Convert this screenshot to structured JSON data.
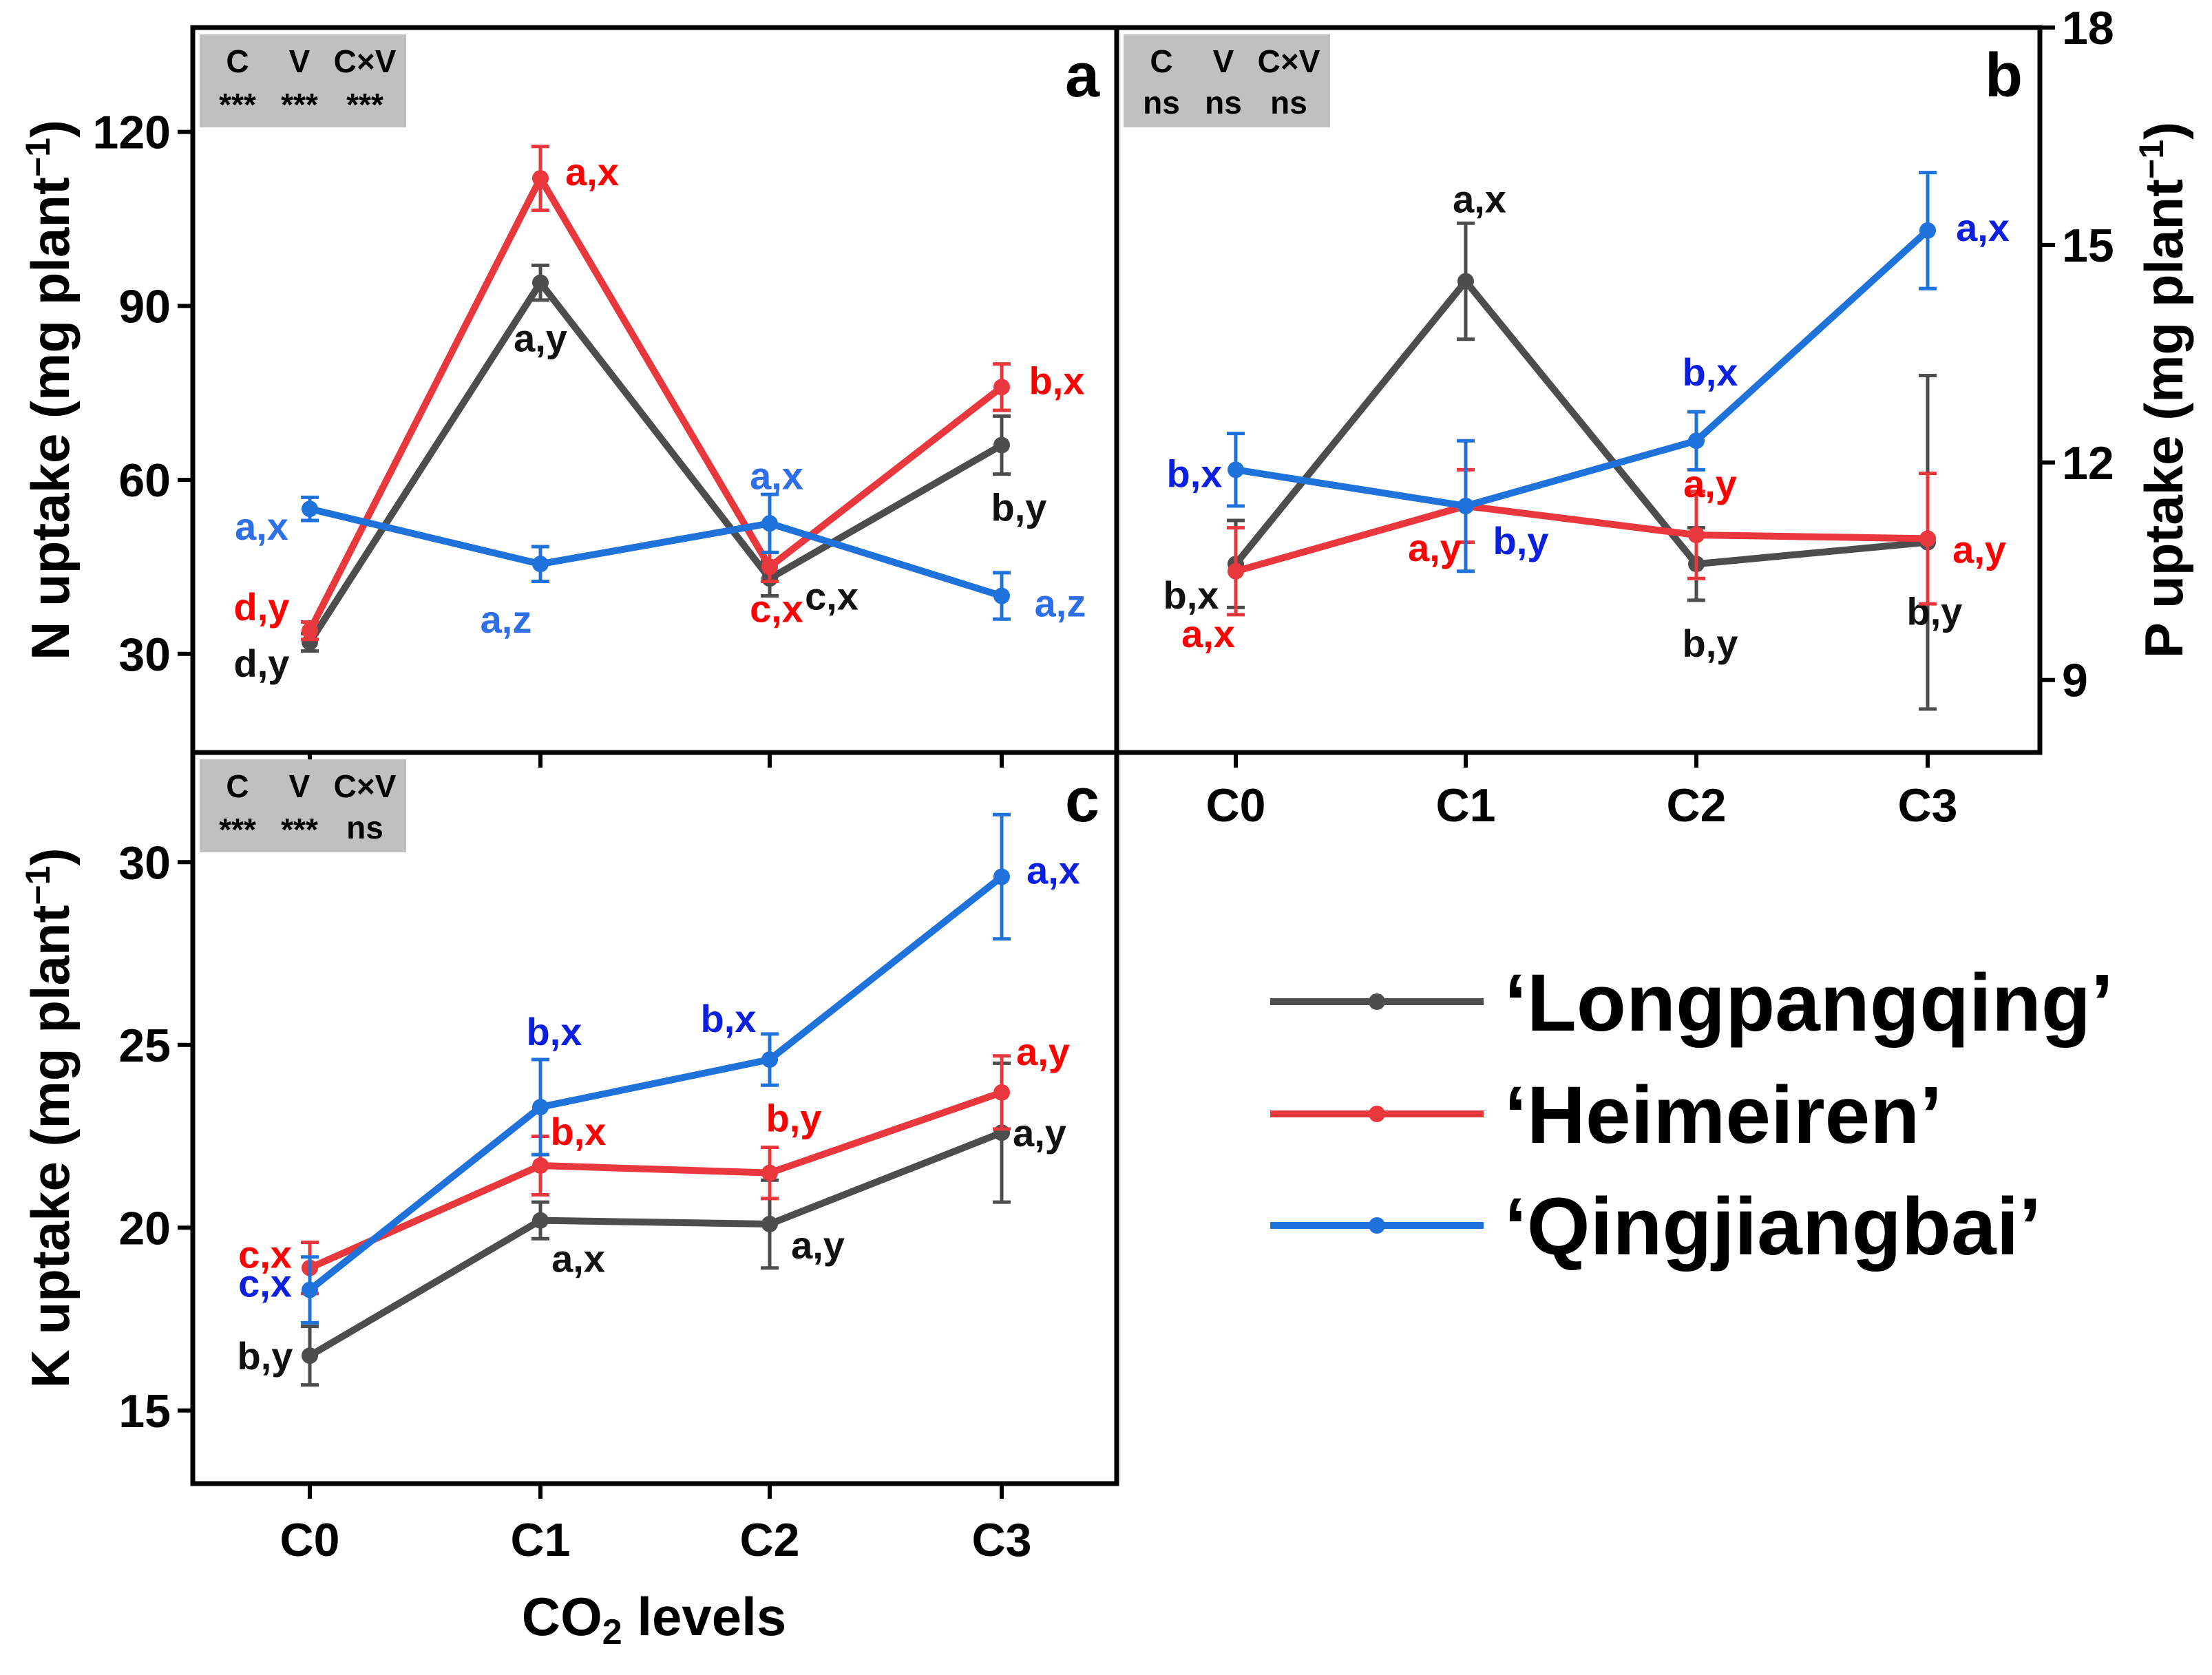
{
  "colors": {
    "Longpangqing": "#4d4d4d",
    "Heimeiren": "#e8383d",
    "Qingjiangbai": "#1f72d9",
    "label_black": "#111111",
    "label_red": "#ff0000",
    "label_blue_a": "#2e6fe8",
    "label_blue": "#0a1fe0",
    "anova_box": "#c0c0c0"
  },
  "legend": [
    {
      "name": "‘Longpangqing’",
      "series": "Longpangqing"
    },
    {
      "name": "‘Heimeiren’",
      "series": "Heimeiren"
    },
    {
      "name": "‘Qingjiangbai’",
      "series": "Qingjiangbai"
    }
  ],
  "xlabel_main": "CO",
  "xlabel_sub": "2",
  "xlabel_rest": " levels",
  "chart_data": [
    {
      "panel": "a",
      "type": "line",
      "categories": [
        "C0",
        "C1",
        "C2",
        "C3"
      ],
      "ylabel": "N uptake (mg plant",
      "ylabel_sup": "−1",
      "ylim": [
        13,
        138
      ],
      "yticks": [
        30,
        60,
        90,
        120
      ],
      "anova": {
        "headers": [
          "C",
          "V",
          "C×V"
        ],
        "values": [
          "***",
          "***",
          "***"
        ]
      },
      "series": [
        {
          "name": "Longpangqing",
          "values": [
            32,
            94,
            43,
            66
          ],
          "errors": [
            1.5,
            3,
            3,
            5
          ],
          "labels": [
            {
              "text": "d,y",
              "color": "black"
            },
            {
              "text": "a,y",
              "color": "black"
            },
            {
              "text": "c,x",
              "color": "black"
            },
            {
              "text": "b,y",
              "color": "black"
            }
          ]
        },
        {
          "name": "Heimeiren",
          "values": [
            34,
            112,
            45,
            76
          ],
          "errors": [
            1.5,
            5.5,
            2.5,
            4
          ],
          "labels": [
            {
              "text": "d,y",
              "color": "red"
            },
            {
              "text": "a,x",
              "color": "red"
            },
            {
              "text": "c,x",
              "color": "red"
            },
            {
              "text": "b,x",
              "color": "red"
            }
          ]
        },
        {
          "name": "Qingjiangbai",
          "values": [
            55,
            45.5,
            52.5,
            40
          ],
          "errors": [
            2,
            3,
            5,
            4
          ],
          "labels": [
            {
              "text": "a,x",
              "color": "blue_a"
            },
            {
              "text": "a,z",
              "color": "blue_a"
            },
            {
              "text": "a,x",
              "color": "blue_a"
            },
            {
              "text": "a,z",
              "color": "blue_a"
            }
          ]
        }
      ]
    },
    {
      "panel": "b",
      "type": "line",
      "categories": [
        "C0",
        "C1",
        "C2",
        "C3"
      ],
      "ylabel": "P uptake (mg plant",
      "ylabel_sup": "−1",
      "ylim": [
        8,
        18
      ],
      "yticks": [
        9,
        12,
        15,
        18
      ],
      "y_axis_side": "right",
      "anova": {
        "headers": [
          "C",
          "V",
          "C×V"
        ],
        "values": [
          "ns",
          "ns",
          "ns"
        ]
      },
      "series": [
        {
          "name": "Longpangqing",
          "values": [
            10.6,
            14.5,
            10.6,
            10.9
          ],
          "errors": [
            0.6,
            0.8,
            0.5,
            2.3
          ],
          "labels": [
            {
              "text": "b,x",
              "color": "black"
            },
            {
              "text": "a,x",
              "color": "black"
            },
            {
              "text": "b,y",
              "color": "black"
            },
            {
              "text": "b,y",
              "color": "black"
            }
          ]
        },
        {
          "name": "Heimeiren",
          "values": [
            10.5,
            11.4,
            11.0,
            10.95
          ],
          "errors": [
            0.6,
            0.5,
            0.6,
            0.9
          ],
          "labels": [
            {
              "text": "a,x",
              "color": "red"
            },
            {
              "text": "a,y",
              "color": "red"
            },
            {
              "text": "a,y",
              "color": "red"
            },
            {
              "text": "a,y",
              "color": "red"
            }
          ]
        },
        {
          "name": "Qingjiangbai",
          "values": [
            11.9,
            11.4,
            12.3,
            15.2
          ],
          "errors": [
            0.5,
            0.9,
            0.4,
            0.8
          ],
          "labels": [
            {
              "text": "b,x",
              "color": "blue"
            },
            {
              "text": "b,y",
              "color": "blue"
            },
            {
              "text": "b,x",
              "color": "blue"
            },
            {
              "text": "a,x",
              "color": "blue"
            }
          ]
        }
      ]
    },
    {
      "panel": "c",
      "type": "line",
      "categories": [
        "C0",
        "C1",
        "C2",
        "C3"
      ],
      "ylabel": "K uptake (mg plant",
      "ylabel_sup": "−1",
      "ylim": [
        13,
        33
      ],
      "yticks": [
        15,
        20,
        25,
        30
      ],
      "anova": {
        "headers": [
          "C",
          "V",
          "C×V"
        ],
        "values": [
          "***",
          "***",
          "ns"
        ]
      },
      "series": [
        {
          "name": "Longpangqing",
          "values": [
            16.5,
            20.2,
            20.1,
            22.6
          ],
          "errors": [
            0.8,
            0.5,
            1.2,
            1.9
          ],
          "labels": [
            {
              "text": "b,y",
              "color": "black"
            },
            {
              "text": "a,x",
              "color": "black"
            },
            {
              "text": "a,y",
              "color": "black"
            },
            {
              "text": "a,y",
              "color": "black"
            }
          ]
        },
        {
          "name": "Heimeiren",
          "values": [
            18.9,
            21.7,
            21.5,
            23.7
          ],
          "errors": [
            0.7,
            0.8,
            0.7,
            1.0
          ],
          "labels": [
            {
              "text": "c,x",
              "color": "red"
            },
            {
              "text": "b,x",
              "color": "red"
            },
            {
              "text": "b,y",
              "color": "red"
            },
            {
              "text": "a,y",
              "color": "red"
            }
          ]
        },
        {
          "name": "Qingjiangbai",
          "values": [
            18.3,
            23.3,
            24.6,
            29.6
          ],
          "errors": [
            0.9,
            1.3,
            0.7,
            1.7
          ],
          "labels": [
            {
              "text": "c,x",
              "color": "blue"
            },
            {
              "text": "b,x",
              "color": "blue"
            },
            {
              "text": "b,x",
              "color": "blue"
            },
            {
              "text": "a,x",
              "color": "blue"
            }
          ]
        }
      ]
    }
  ]
}
